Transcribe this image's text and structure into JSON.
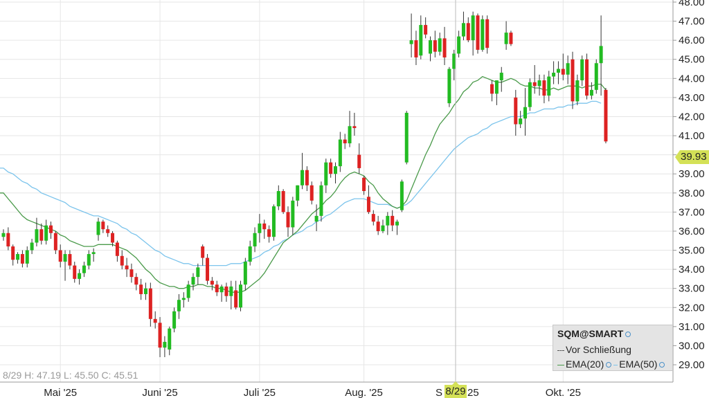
{
  "chart_data": {
    "type": "candlestick",
    "symbol": "SQM@SMART",
    "ylim": [
      28.3,
      48.0
    ],
    "ticks": [
      "48.00",
      "47.00",
      "46.00",
      "45.00",
      "44.00",
      "43.00",
      "42.00",
      "41.00",
      "40.00",
      "39.00",
      "38.00",
      "37.00",
      "36.00",
      "35.00",
      "34.00",
      "33.00",
      "32.00",
      "31.00",
      "30.00",
      "29.00"
    ],
    "tick_values": [
      48,
      47,
      46,
      45,
      44,
      43,
      42,
      41,
      40,
      39,
      38,
      37,
      36,
      35,
      34,
      33,
      32,
      31,
      30,
      29
    ],
    "x_labels": [
      {
        "label": "Mai '25",
        "index": 12
      },
      {
        "label": "Juni '25",
        "index": 33
      },
      {
        "label": "Juli '25",
        "index": 54
      },
      {
        "label": "Aug. '25",
        "index": 76
      },
      {
        "label": "S",
        "index": 96
      },
      {
        "label": "25",
        "index": 99
      },
      {
        "label": "Okt. '25",
        "index": 118
      }
    ],
    "candles": [
      [
        35.7,
        36.1,
        35.5,
        35.9
      ],
      [
        35.9,
        36.2,
        35.0,
        35.2
      ],
      [
        35.2,
        35.3,
        34.2,
        34.5
      ],
      [
        34.5,
        34.9,
        34.3,
        34.8
      ],
      [
        34.8,
        35.0,
        34.1,
        34.3
      ],
      [
        34.3,
        35.2,
        34.1,
        35.0
      ],
      [
        35.0,
        35.6,
        34.8,
        35.4
      ],
      [
        35.4,
        36.7,
        35.2,
        36.1
      ],
      [
        36.1,
        36.4,
        35.3,
        35.5
      ],
      [
        35.5,
        36.6,
        35.3,
        36.3
      ],
      [
        36.3,
        36.5,
        35.6,
        35.9
      ],
      [
        35.9,
        36.0,
        34.8,
        35.0
      ],
      [
        35.0,
        35.3,
        34.1,
        34.4
      ],
      [
        34.4,
        35.0,
        33.4,
        34.8
      ],
      [
        34.8,
        35.0,
        34.0,
        34.2
      ],
      [
        34.2,
        34.4,
        33.3,
        33.5
      ],
      [
        33.5,
        34.0,
        33.2,
        33.8
      ],
      [
        33.8,
        34.4,
        33.6,
        34.2
      ],
      [
        34.2,
        35.0,
        34.0,
        34.8
      ],
      [
        34.8,
        35.1,
        34.4,
        34.9
      ],
      [
        35.8,
        36.7,
        35.5,
        36.5
      ],
      [
        36.5,
        36.6,
        35.9,
        36.1
      ],
      [
        36.1,
        36.3,
        35.7,
        35.9
      ],
      [
        35.9,
        36.0,
        35.2,
        35.4
      ],
      [
        35.4,
        35.5,
        34.4,
        34.7
      ],
      [
        34.7,
        35.0,
        34.0,
        34.2
      ],
      [
        34.2,
        34.6,
        33.6,
        34.0
      ],
      [
        34.0,
        34.3,
        33.3,
        33.6
      ],
      [
        33.6,
        33.8,
        32.9,
        33.2
      ],
      [
        33.2,
        33.5,
        32.4,
        32.7
      ],
      [
        32.7,
        33.3,
        32.4,
        33.0
      ],
      [
        33.0,
        33.3,
        31.0,
        31.4
      ],
      [
        31.4,
        31.8,
        30.9,
        31.2
      ],
      [
        31.2,
        31.5,
        29.4,
        29.9
      ],
      [
        29.9,
        30.5,
        29.4,
        30.2
      ],
      [
        29.8,
        31.0,
        29.5,
        30.9
      ],
      [
        30.9,
        32.0,
        30.7,
        31.8
      ],
      [
        31.8,
        32.7,
        31.4,
        32.4
      ],
      [
        32.4,
        32.8,
        32.0,
        32.5
      ],
      [
        32.5,
        33.4,
        32.3,
        33.2
      ],
      [
        33.2,
        33.8,
        32.9,
        33.6
      ],
      [
        33.6,
        34.3,
        33.2,
        34.1
      ],
      [
        35.2,
        35.3,
        34.2,
        34.6
      ],
      [
        34.6,
        34.8,
        33.2,
        33.4
      ],
      [
        33.4,
        33.6,
        32.9,
        33.2
      ],
      [
        33.2,
        33.4,
        32.6,
        32.8
      ],
      [
        32.8,
        33.2,
        32.3,
        33.1
      ],
      [
        33.1,
        33.3,
        32.3,
        32.6
      ],
      [
        32.6,
        33.4,
        31.9,
        33.1
      ],
      [
        32.9,
        33.4,
        31.9,
        32.0
      ],
      [
        32.0,
        33.4,
        31.8,
        33.2
      ],
      [
        33.2,
        34.6,
        32.9,
        34.4
      ],
      [
        34.4,
        35.5,
        34.2,
        35.2
      ],
      [
        35.2,
        36.2,
        34.9,
        35.9
      ],
      [
        35.9,
        36.9,
        35.4,
        36.4
      ],
      [
        36.4,
        36.6,
        35.6,
        36.1
      ],
      [
        36.1,
        36.3,
        35.4,
        35.7
      ],
      [
        35.7,
        37.4,
        35.5,
        37.3
      ],
      [
        37.3,
        38.4,
        37.1,
        38.1
      ],
      [
        38.1,
        38.2,
        36.9,
        37.0
      ],
      [
        37.0,
        37.3,
        35.7,
        36.2
      ],
      [
        36.2,
        37.8,
        35.8,
        37.6
      ],
      [
        37.6,
        38.4,
        37.3,
        38.4
      ],
      [
        38.4,
        40.1,
        38.2,
        39.2
      ],
      [
        39.2,
        39.4,
        38.1,
        38.4
      ],
      [
        38.4,
        38.6,
        37.4,
        37.6
      ],
      [
        36.5,
        37.4,
        36.0,
        36.8
      ],
      [
        36.8,
        38.6,
        36.5,
        38.4
      ],
      [
        38.4,
        39.8,
        38.0,
        39.6
      ],
      [
        39.6,
        39.8,
        38.8,
        39.0
      ],
      [
        39.0,
        39.6,
        38.5,
        39.4
      ],
      [
        39.4,
        41.2,
        39.1,
        40.8
      ],
      [
        40.8,
        41.1,
        40.3,
        40.6
      ],
      [
        40.6,
        42.3,
        40.4,
        41.5
      ],
      [
        41.5,
        42.2,
        41.0,
        41.4
      ],
      [
        40.0,
        40.6,
        39.0,
        39.3
      ],
      [
        38.8,
        38.9,
        37.9,
        38.1
      ],
      [
        37.8,
        38.4,
        36.9,
        37.0
      ],
      [
        36.9,
        37.1,
        36.3,
        36.5
      ],
      [
        36.5,
        36.8,
        35.8,
        36.0
      ],
      [
        36.0,
        36.6,
        35.9,
        36.3
      ],
      [
        36.3,
        37.0,
        35.8,
        36.8
      ],
      [
        36.8,
        37.1,
        36.0,
        36.3
      ],
      [
        36.3,
        36.6,
        35.8,
        36.5
      ],
      [
        37.1,
        38.7,
        37.0,
        38.6
      ],
      [
        39.6,
        42.3,
        39.5,
        42.2
      ],
      [
        45.8,
        47.4,
        45.1,
        46.0
      ],
      [
        46.0,
        46.5,
        44.7,
        45.1
      ],
      [
        45.2,
        47.3,
        45.0,
        46.8
      ],
      [
        46.8,
        47.2,
        46.1,
        46.3
      ],
      [
        45.3,
        46.2,
        44.9,
        46.0
      ],
      [
        46.0,
        46.5,
        45.1,
        45.4
      ],
      [
        45.4,
        46.4,
        45.2,
        46.1
      ],
      [
        46.1,
        46.7,
        44.7,
        45.1
      ],
      [
        42.7,
        44.6,
        42.5,
        44.5
      ],
      [
        44.5,
        45.5,
        43.9,
        45.3
      ],
      [
        45.3,
        46.5,
        45.1,
        46.2
      ],
      [
        46.2,
        47.5,
        46.0,
        46.9
      ],
      [
        46.9,
        47.2,
        45.9,
        46.0
      ],
      [
        46.0,
        47.5,
        45.2,
        47.3
      ],
      [
        47.3,
        47.4,
        45.3,
        45.5
      ],
      [
        45.5,
        47.3,
        45.4,
        47.1
      ],
      [
        47.1,
        47.3,
        45.3,
        45.6
      ],
      [
        43.7,
        43.9,
        42.8,
        43.2
      ],
      [
        43.2,
        43.9,
        42.6,
        43.9
      ],
      [
        43.9,
        44.6,
        43.3,
        44.3
      ],
      [
        45.8,
        47.0,
        45.5,
        46.4
      ],
      [
        46.4,
        46.5,
        45.7,
        45.8
      ],
      [
        43.0,
        43.4,
        41.0,
        41.6
      ],
      [
        41.6,
        42.3,
        41.4,
        41.9
      ],
      [
        41.9,
        43.5,
        41.0,
        42.5
      ],
      [
        42.5,
        44.0,
        42.3,
        43.8
      ],
      [
        43.8,
        44.7,
        43.2,
        43.6
      ],
      [
        43.6,
        44.2,
        43.1,
        43.9
      ],
      [
        43.9,
        44.2,
        42.7,
        43.1
      ],
      [
        43.1,
        44.4,
        42.8,
        44.1
      ],
      [
        44.1,
        44.9,
        43.7,
        44.3
      ],
      [
        44.3,
        44.9,
        43.7,
        44.5
      ],
      [
        44.5,
        45.3,
        43.9,
        44.2
      ],
      [
        44.2,
        45.2,
        43.7,
        44.8
      ],
      [
        45.0,
        45.4,
        42.4,
        42.8
      ],
      [
        42.8,
        44.2,
        42.6,
        43.9
      ],
      [
        43.9,
        45.2,
        43.6,
        45.0
      ],
      [
        45.0,
        45.3,
        42.9,
        43.1
      ],
      [
        43.1,
        43.8,
        42.9,
        43.4
      ],
      [
        43.4,
        45.0,
        43.2,
        44.8
      ],
      [
        44.8,
        47.3,
        43.1,
        45.7
      ],
      [
        43.4,
        43.5,
        40.6,
        40.7
      ]
    ],
    "ema20": [
      38.0,
      37.7,
      37.4,
      37.1,
      36.8,
      36.6,
      36.5,
      36.4,
      36.3,
      36.2,
      36.1,
      36.0,
      35.8,
      35.7,
      35.5,
      35.4,
      35.3,
      35.2,
      35.2,
      35.2,
      35.3,
      35.3,
      35.3,
      35.3,
      35.2,
      35.1,
      35.0,
      34.8,
      34.6,
      34.3,
      34.0,
      33.8,
      33.5,
      33.3,
      33.2,
      33.1,
      33.1,
      33.0,
      33.0,
      33.1,
      33.1,
      33.2,
      33.2,
      33.1,
      33.1,
      33.0,
      33.0,
      32.9,
      32.8,
      32.8,
      32.8,
      32.9,
      33.1,
      33.3,
      33.5,
      33.8,
      34.2,
      34.6,
      35.0,
      35.4,
      35.6,
      35.8,
      36.0,
      36.3,
      36.6,
      36.9,
      37.1,
      37.3,
      37.6,
      37.8,
      38.1,
      38.5,
      38.8,
      39.0,
      39.1,
      39.0,
      38.9,
      38.6,
      38.4,
      38.0,
      37.7,
      37.5,
      37.3,
      37.2,
      37.3,
      37.6,
      38.2,
      38.8,
      39.4,
      40.0,
      40.5,
      41.1,
      41.6,
      41.9,
      42.2,
      42.6,
      42.9,
      43.3,
      43.5,
      43.8,
      43.9,
      44.1,
      44.0,
      43.9,
      43.8,
      43.8,
      43.9,
      44.0,
      43.9,
      43.7,
      43.6,
      43.6,
      43.5,
      43.5,
      43.4,
      43.4,
      43.5,
      43.4,
      43.5,
      43.6,
      43.6,
      43.6,
      43.5,
      43.6,
      43.6,
      43.7,
      43.7,
      43.4
    ],
    "ema50": [
      39.3,
      39.1,
      39.0,
      38.8,
      38.6,
      38.5,
      38.3,
      38.2,
      38.0,
      37.9,
      37.8,
      37.7,
      37.6,
      37.5,
      37.3,
      37.2,
      37.1,
      37.0,
      36.9,
      36.8,
      36.8,
      36.7,
      36.6,
      36.5,
      36.4,
      36.2,
      36.1,
      35.9,
      35.8,
      35.6,
      35.4,
      35.2,
      35.0,
      34.9,
      34.7,
      34.6,
      34.5,
      34.4,
      34.3,
      34.3,
      34.2,
      34.2,
      34.2,
      34.2,
      34.2,
      34.2,
      34.2,
      34.2,
      34.3,
      34.3,
      34.3,
      34.4,
      34.5,
      34.6,
      34.7,
      34.9,
      35.0,
      35.2,
      35.3,
      35.5,
      35.6,
      35.8,
      35.9,
      36.0,
      36.2,
      36.3,
      36.5,
      36.6,
      36.8,
      36.9,
      37.1,
      37.3,
      37.5,
      37.6,
      37.7,
      37.7,
      37.7,
      37.6,
      37.5,
      37.4,
      37.4,
      37.4,
      37.3,
      37.2,
      37.3,
      37.4,
      37.6,
      37.9,
      38.2,
      38.5,
      38.8,
      39.1,
      39.4,
      39.7,
      40.0,
      40.3,
      40.5,
      40.7,
      40.9,
      41.0,
      41.1,
      41.3,
      41.4,
      41.6,
      41.7,
      41.8,
      41.9,
      42.0,
      42.0,
      42.0,
      42.1,
      42.2,
      42.2,
      42.3,
      42.4,
      42.4,
      42.4,
      42.5,
      42.5,
      42.6,
      42.6,
      42.7,
      42.7,
      42.7,
      42.8,
      42.8,
      42.7
    ]
  },
  "legend": {
    "title": "SQM@SMART",
    "prev_close_label": "Vor Schließung",
    "ema20_label": "EMA(20)",
    "ema50_label": "EMA(50)"
  },
  "ohlc_readout": "8/29 H: 47.19 L: 45.50 C: 45.51",
  "last_price": "39.93",
  "cursor_date": "8/29",
  "colors": {
    "up": "#22bb22",
    "down": "#dd2222",
    "ema20": "#4a9a4a",
    "ema50": "#7cc4ec",
    "grid": "#e6e6e6",
    "highlight": "#d4e157"
  }
}
